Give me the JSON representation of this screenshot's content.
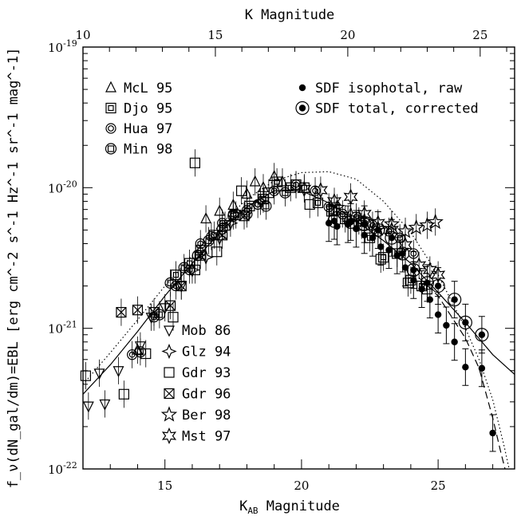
{
  "chart_data": {
    "type": "scatter",
    "title": "",
    "xlabel_main": "K",
    "xlabel_sub": "AB",
    "xlabel_rest": " Magnitude",
    "x2label": "K Magnitude",
    "ylabel": "f_ν(dN_gal/dm)=EBL [erg cm^-2 s^-1 Hz^-1 sr^-1 mag^-1]",
    "xlim": [
      12,
      27.8
    ],
    "ylim_log10": [
      -22,
      -19
    ],
    "y_log": true,
    "x_ticks": [
      "15",
      "20",
      "25"
    ],
    "x2_ticks": [
      "10",
      "15",
      "20",
      "25"
    ],
    "y_tick_bases": [
      "10",
      "10",
      "10",
      "10"
    ],
    "y_tick_exps": [
      "-22",
      "-21",
      "-20",
      "-19"
    ],
    "legend_top_left": [
      {
        "name": "McL 95",
        "symbol": "triangle-up"
      },
      {
        "name": "Djo 95",
        "symbol": "square-dot"
      },
      {
        "name": "Hua 97",
        "symbol": "circle-ring"
      },
      {
        "name": "Min 98",
        "symbol": "circle-square"
      }
    ],
    "legend_top_right": [
      {
        "name": "SDF isophotal, raw",
        "symbol": "dot-filled"
      },
      {
        "name": "SDF total, corrected",
        "symbol": "dot-circled"
      }
    ],
    "legend_bottom": [
      {
        "name": "Mob 86",
        "symbol": "triangle-down"
      },
      {
        "name": "Glz 94",
        "symbol": "star-4"
      },
      {
        "name": "Gdr 93",
        "symbol": "square"
      },
      {
        "name": "Gdr 96",
        "symbol": "square-x"
      },
      {
        "name": "Ber 98",
        "symbol": "star-5"
      },
      {
        "name": "Mst 97",
        "symbol": "star-6"
      }
    ],
    "series": [
      {
        "name": "SDF isophotal, raw",
        "symbol": "dot-filled",
        "points": [
          [
            21.0,
            5.6e-21
          ],
          [
            21.3,
            5.3e-21
          ],
          [
            21.7,
            5.5e-21
          ],
          [
            22.0,
            5.1e-21
          ],
          [
            22.3,
            4.6e-21
          ],
          [
            22.6,
            4.4e-21
          ],
          [
            22.9,
            3.8e-21
          ],
          [
            23.2,
            3.6e-21
          ],
          [
            23.5,
            3.3e-21
          ],
          [
            23.8,
            2.7e-21
          ],
          [
            24.1,
            2.2e-21
          ],
          [
            24.4,
            1.9e-21
          ],
          [
            24.7,
            1.6e-21
          ],
          [
            25.0,
            1.25e-21
          ],
          [
            25.3,
            1.05e-21
          ],
          [
            25.6,
            8e-22
          ],
          [
            26.0,
            5.3e-22
          ],
          [
            26.6,
            5.2e-22
          ],
          [
            27.0,
            1.8e-22
          ]
        ]
      },
      {
        "name": "SDF total, corrected",
        "symbol": "dot-circled",
        "points": [
          [
            21.2,
            5.8e-21
          ],
          [
            21.8,
            5.7e-21
          ],
          [
            22.3,
            5.5e-21
          ],
          [
            22.8,
            5e-21
          ],
          [
            23.3,
            4.4e-21
          ],
          [
            23.7,
            3.4e-21
          ],
          [
            24.1,
            2.6e-21
          ],
          [
            24.6,
            2.1e-21
          ],
          [
            25.0,
            2e-21
          ],
          [
            25.6,
            1.6e-21
          ],
          [
            26.0,
            1.1e-21
          ],
          [
            26.6,
            9e-22
          ]
        ]
      },
      {
        "name": "McL 95",
        "symbol": "triangle-up",
        "points": [
          [
            17.0,
            6.8e-21
          ],
          [
            17.5,
            7.5e-21
          ],
          [
            18.0,
            9e-21
          ],
          [
            18.3,
            1.1e-20
          ],
          [
            18.6,
            1e-20
          ],
          [
            19.0,
            1.2e-20
          ],
          [
            19.3,
            1.1e-20
          ],
          [
            14.0,
            7e-22
          ],
          [
            16.5,
            6e-21
          ]
        ]
      },
      {
        "name": "Djo 95",
        "symbol": "square-dot",
        "points": [
          [
            15.4,
            2.4e-21
          ],
          [
            15.9,
            2.9e-21
          ],
          [
            16.3,
            3.6e-21
          ],
          [
            16.8,
            4.6e-21
          ],
          [
            17.2,
            5.4e-21
          ],
          [
            17.6,
            6.4e-21
          ],
          [
            18.1,
            7.4e-21
          ],
          [
            18.6,
            8.3e-21
          ],
          [
            19.1,
            1.1e-20
          ],
          [
            19.6,
            1e-20
          ],
          [
            20.1,
            1e-20
          ],
          [
            20.6,
            7.8e-21
          ],
          [
            21.1,
            6.8e-21
          ],
          [
            21.6,
            6e-21
          ],
          [
            22.1,
            5.8e-21
          ],
          [
            22.5,
            4.4e-21
          ],
          [
            23.0,
            3.2e-21
          ],
          [
            23.5,
            3.4e-21
          ],
          [
            24.0,
            2.2e-21
          ],
          [
            24.4,
            2e-21
          ]
        ]
      },
      {
        "name": "Hua 97",
        "symbol": "circle-ring",
        "points": [
          [
            13.8,
            6.5e-22
          ],
          [
            14.6,
            1.2e-21
          ],
          [
            15.4,
            2e-21
          ],
          [
            15.9,
            2.6e-21
          ],
          [
            16.3,
            4e-21
          ],
          [
            16.7,
            4.5e-21
          ],
          [
            17.1,
            5.6e-21
          ],
          [
            17.5,
            6.5e-21
          ],
          [
            18.0,
            6.9e-21
          ],
          [
            18.4,
            7.6e-21
          ],
          [
            19.0,
            9.5e-21
          ],
          [
            19.8,
            1.05e-20
          ],
          [
            20.5,
            9.5e-21
          ],
          [
            21.0,
            7.3e-21
          ],
          [
            21.5,
            6.5e-21
          ],
          [
            22.0,
            6.2e-21
          ],
          [
            22.6,
            5.4e-21
          ],
          [
            23.2,
            4.9e-21
          ],
          [
            23.6,
            4.4e-21
          ],
          [
            24.1,
            3.4e-21
          ]
        ]
      },
      {
        "name": "Min 98",
        "symbol": "circle-square",
        "points": [
          [
            14.1,
            6.8e-22
          ],
          [
            14.8,
            1.25e-21
          ],
          [
            15.2,
            2.1e-21
          ],
          [
            15.7,
            2.7e-21
          ],
          [
            16.2,
            3.3e-21
          ],
          [
            16.6,
            4.2e-21
          ],
          [
            17.1,
            5.1e-21
          ],
          [
            17.5,
            6.3e-21
          ],
          [
            18.0,
            6.5e-21
          ],
          [
            18.7,
            7.4e-21
          ],
          [
            19.4,
            9.2e-21
          ]
        ]
      },
      {
        "name": "Mob 86",
        "symbol": "triangle-down",
        "points": [
          [
            12.2,
            2.8e-22
          ],
          [
            12.6,
            4.8e-22
          ],
          [
            12.8,
            2.9e-22
          ],
          [
            13.3,
            5e-22
          ],
          [
            14.1,
            7.5e-22
          ],
          [
            14.5,
            1.2e-21
          ],
          [
            15.0,
            1.4e-21
          ],
          [
            15.6,
            2e-21
          ]
        ]
      },
      {
        "name": "Glz 94",
        "symbol": "star-4",
        "points": [
          [
            16.0,
            2.6e-21
          ],
          [
            16.5,
            3.2e-21
          ],
          [
            17.0,
            4.4e-21
          ],
          [
            17.4,
            5.6e-21
          ],
          [
            18.5,
            8e-21
          ]
        ]
      },
      {
        "name": "Gdr 93",
        "symbol": "square",
        "points": [
          [
            12.1,
            4.6e-22
          ],
          [
            13.5,
            3.4e-22
          ],
          [
            14.3,
            6.6e-22
          ],
          [
            15.3,
            1.2e-21
          ],
          [
            16.1,
            2.6e-21
          ],
          [
            16.9,
            3.5e-21
          ],
          [
            17.8,
            9.5e-21
          ],
          [
            18.8,
            9.2e-21
          ],
          [
            19.8,
            1.05e-20
          ],
          [
            20.3,
            7.6e-21
          ],
          [
            21.2,
            6.9e-21
          ],
          [
            22.2,
            5.4e-21
          ],
          [
            22.9,
            3.1e-21
          ],
          [
            23.9,
            2.1e-21
          ],
          [
            24.6,
            1.9e-21
          ],
          [
            16.1,
            1.5e-20
          ]
        ]
      },
      {
        "name": "Gdr 96",
        "symbol": "square-x",
        "points": [
          [
            13.4,
            1.3e-21
          ],
          [
            14.0,
            1.35e-21
          ],
          [
            14.6,
            1.3e-21
          ],
          [
            15.2,
            1.45e-21
          ],
          [
            15.6,
            2e-21
          ],
          [
            16.3,
            3.3e-21
          ],
          [
            17.1,
            4.6e-21
          ],
          [
            17.9,
            6.3e-21
          ]
        ]
      },
      {
        "name": "Ber 98",
        "symbol": "star-5",
        "points": [
          [
            21.3,
            7.2e-21
          ],
          [
            21.8,
            6.4e-21
          ],
          [
            22.3,
            5.8e-21
          ],
          [
            22.8,
            5.1e-21
          ],
          [
            23.3,
            5.5e-21
          ],
          [
            23.8,
            4.9e-21
          ],
          [
            24.2,
            5.2e-21
          ],
          [
            24.6,
            5.4e-21
          ],
          [
            24.9,
            5.7e-21
          ]
        ]
      },
      {
        "name": "Mst 97",
        "symbol": "star-6",
        "points": [
          [
            20.1,
            9.8e-21
          ],
          [
            20.7,
            9.6e-21
          ],
          [
            21.2,
            8e-21
          ],
          [
            21.8,
            8.6e-21
          ],
          [
            22.3,
            6.5e-21
          ],
          [
            22.8,
            5.6e-21
          ],
          [
            23.3,
            5e-21
          ],
          [
            23.8,
            3.9e-21
          ],
          [
            24.3,
            2.8e-21
          ],
          [
            24.7,
            2.6e-21
          ],
          [
            25.0,
            2.4e-21
          ]
        ]
      }
    ],
    "curves": [
      {
        "style": "solid",
        "points": [
          [
            12,
            3.4e-22
          ],
          [
            13,
            5.5e-22
          ],
          [
            14,
            9.5e-22
          ],
          [
            15,
            1.7e-21
          ],
          [
            16,
            2.9e-21
          ],
          [
            17,
            4.8e-21
          ],
          [
            18,
            7.3e-21
          ],
          [
            19,
            9.5e-21
          ],
          [
            20,
            9.5e-21
          ],
          [
            21,
            7.8e-21
          ],
          [
            22,
            5.8e-21
          ],
          [
            23,
            4.2e-21
          ],
          [
            24,
            2.9e-21
          ],
          [
            25,
            1.8e-21
          ],
          [
            26,
            1.1e-21
          ],
          [
            27,
            6.5e-22
          ],
          [
            27.8,
            4.7e-22
          ]
        ]
      },
      {
        "style": "dotted",
        "points": [
          [
            12,
            4e-22
          ],
          [
            13,
            6.7e-22
          ],
          [
            14,
            1.15e-21
          ],
          [
            15,
            2e-21
          ],
          [
            16,
            3.3e-21
          ],
          [
            17,
            5.4e-21
          ],
          [
            18,
            8.3e-21
          ],
          [
            19,
            1.12e-20
          ],
          [
            20,
            1.28e-20
          ],
          [
            21,
            1.3e-20
          ],
          [
            22,
            1.15e-20
          ],
          [
            23,
            8e-21
          ],
          [
            24,
            4.8e-21
          ],
          [
            25,
            2.4e-21
          ],
          [
            26,
            1e-21
          ],
          [
            26.5,
            6e-22
          ],
          [
            27,
            3.1e-22
          ],
          [
            27.4,
            1.5e-22
          ],
          [
            27.6,
            1e-22
          ]
        ]
      },
      {
        "style": "dashed",
        "points": [
          [
            24.0,
            2.6e-21
          ],
          [
            25,
            1.7e-21
          ],
          [
            26,
            8.5e-22
          ],
          [
            26.5,
            5.2e-22
          ],
          [
            27,
            2.3e-22
          ],
          [
            27.3,
            1.3e-22
          ],
          [
            27.45,
            1e-22
          ]
        ]
      }
    ]
  }
}
